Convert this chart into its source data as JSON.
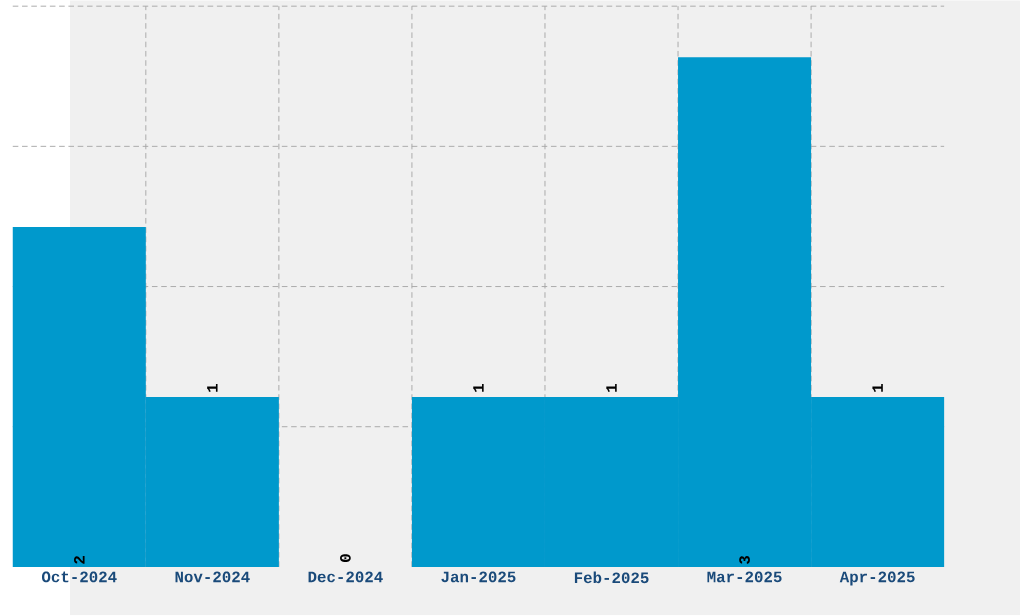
{
  "chart_data": {
    "type": "bar",
    "categories": [
      "Oct-2024",
      "Nov-2024",
      "Dec-2024",
      "Jan-2025",
      "Feb-2025",
      "Mar-2025",
      "Apr-2025"
    ],
    "values": [
      2,
      1,
      0,
      1,
      1,
      3,
      1
    ],
    "color": "#0099cc",
    "ylim": [
      0,
      3.3
    ],
    "yticks": [
      {
        "value": 0.825,
        "label": null
      },
      {
        "value": 1.65,
        "label": null
      },
      {
        "value": 2.475,
        "label": null
      },
      {
        "value": 3.3,
        "label": null
      }
    ],
    "grid": true,
    "tick_labels": "x",
    "data_labels": true
  }
}
